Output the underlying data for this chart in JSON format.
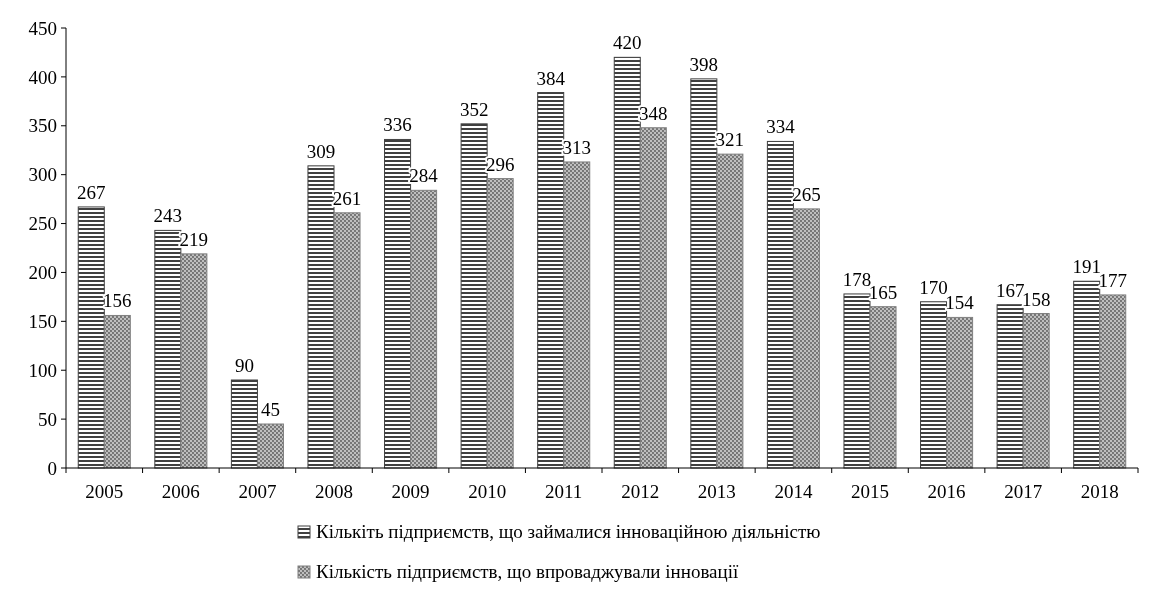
{
  "chart_data": {
    "type": "bar",
    "categories": [
      "2005",
      "2006",
      "2007",
      "2008",
      "2009",
      "2010",
      "2011",
      "2012",
      "2013",
      "2014",
      "2015",
      "2016",
      "2017",
      "2018"
    ],
    "series": [
      {
        "name": "Кількіть підприємств, що займалися інноваційною діяльністю",
        "color": "#404040",
        "values": [
          267,
          243,
          90,
          309,
          336,
          352,
          384,
          420,
          398,
          334,
          178,
          170,
          167,
          191
        ]
      },
      {
        "name": "Кількість підприємств, що впроваджували інновації",
        "color": "#808080",
        "values": [
          156,
          219,
          45,
          261,
          284,
          296,
          313,
          348,
          321,
          265,
          165,
          154,
          158,
          177
        ]
      }
    ],
    "ylim": [
      0,
      450
    ],
    "yticks": [
      0,
      50,
      100,
      150,
      200,
      250,
      300,
      350,
      400,
      450
    ],
    "grid": false,
    "legend": "bottom",
    "data_labels": true
  }
}
